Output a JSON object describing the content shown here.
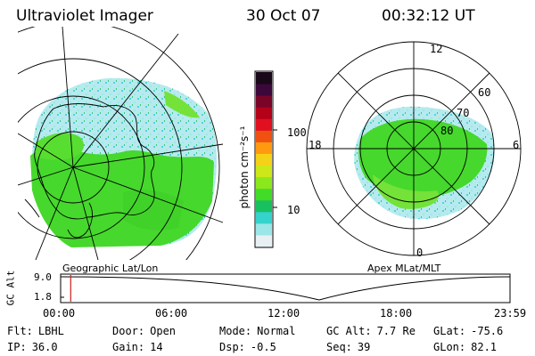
{
  "header": {
    "title": "Ultraviolet Imager",
    "date": "30 Oct 07",
    "time": "00:32:12 UT"
  },
  "colorbar": {
    "label": "photon cm⁻²s⁻¹",
    "ticks": [
      "100",
      "10"
    ],
    "stops": [
      "#e8f0f4",
      "#9be6e6",
      "#36d2cc",
      "#18c060",
      "#42dc28",
      "#8ae81c",
      "#cce818",
      "#f4d218",
      "#ff9a10",
      "#f05010",
      "#e01020",
      "#b40018",
      "#7a0428",
      "#3c083c",
      "#180818"
    ]
  },
  "left_map": {
    "caption": "Geographic Lat/Lon"
  },
  "right_map": {
    "caption": "Apex MLat/MLT",
    "mlt_labels": [
      "12",
      "18",
      "6",
      "0"
    ],
    "lat_labels": [
      "60",
      "70",
      "80"
    ]
  },
  "timeline": {
    "ylabel": "GC Alt",
    "y_ticks": [
      "9.0",
      "1.8"
    ],
    "x_ticks": [
      "00:00",
      "06:00",
      "12:00",
      "18:00",
      "23:59"
    ],
    "marker_time": "00:32:12",
    "marker_color": "#c81e1e"
  },
  "footer": {
    "flt_label": "Flt:",
    "flt_value": "LBHL",
    "ip_label": "IP:",
    "ip_value": "36.0",
    "door_label": "Door:",
    "door_value": "Open",
    "gain_label": "Gain:",
    "gain_value": "14",
    "mode_label": "Mode:",
    "mode_value": "Normal",
    "dsp_label": "Dsp:",
    "dsp_value": "-0.5",
    "gcalt_label": "GC Alt:",
    "gcalt_value": "7.7 Re",
    "seq_label": "Seq:",
    "seq_value": "39",
    "glat_label": "GLat:",
    "glat_value": "-75.6",
    "glon_label": "GLon:",
    "glon_value": "82.1"
  }
}
